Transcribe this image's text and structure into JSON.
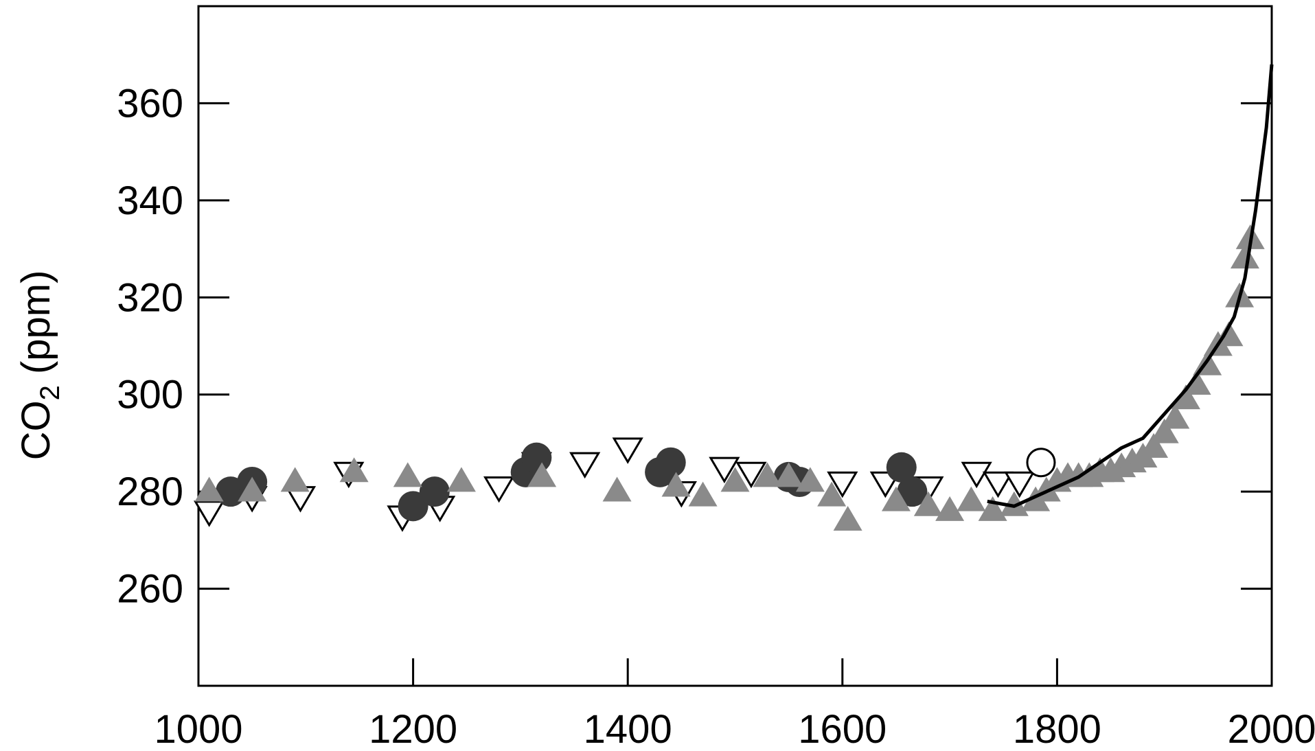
{
  "chart_data": {
    "type": "scatter",
    "xlim": [
      1000,
      2000
    ],
    "ylim": [
      240,
      380
    ],
    "xticks": [
      "1000",
      "1200",
      "1400",
      "1600",
      "1800",
      "2000"
    ],
    "yticks": [
      "260",
      "280",
      "300",
      "320",
      "340",
      "360"
    ],
    "ylabel": {
      "main": "CO",
      "sub": "2",
      "unit": "(ppm)"
    },
    "xlabel": "",
    "grid": false,
    "legend": "none",
    "colors": {
      "dark_circle": "#3a3a3a",
      "gray_triangle": "#8a8a8a",
      "open_marker": "#ffffff",
      "line": "#000000"
    },
    "series": [
      {
        "marker": "filled-circle",
        "color": "#3a3a3a",
        "x": [
          1030,
          1050,
          1200,
          1220,
          1305,
          1315,
          1430,
          1440,
          1550,
          1560,
          1655,
          1665
        ],
        "y": [
          280,
          282,
          277,
          280,
          284,
          287,
          284,
          286,
          283,
          282,
          285,
          280
        ]
      },
      {
        "marker": "filled-triangle-up",
        "color": "#8a8a8a",
        "x": [
          1010,
          1050,
          1090,
          1145,
          1195,
          1245,
          1320,
          1390,
          1445,
          1470,
          1500,
          1530,
          1550,
          1570,
          1590,
          1605,
          1650,
          1680,
          1700,
          1720,
          1740,
          1760,
          1780,
          1790,
          1800,
          1810,
          1820,
          1830,
          1840,
          1850,
          1860,
          1870,
          1880,
          1890,
          1900,
          1910,
          1920,
          1930,
          1940,
          1950,
          1960,
          1970,
          1975,
          1980
        ],
        "y": [
          280,
          280,
          282,
          284,
          283,
          282,
          283,
          280,
          281,
          279,
          282,
          283,
          283,
          282,
          279,
          274,
          278,
          277,
          276,
          278,
          276,
          277,
          278,
          280,
          282,
          283,
          283,
          283,
          284,
          284,
          285,
          286,
          287,
          289,
          292,
          295,
          299,
          302,
          306,
          310,
          312,
          320,
          328,
          332
        ]
      },
      {
        "marker": "open-triangle-down",
        "color": "#ffffff",
        "x": [
          1010,
          1050,
          1095,
          1140,
          1190,
          1225,
          1280,
          1315,
          1360,
          1400,
          1450,
          1490,
          1515,
          1600,
          1640,
          1680,
          1725,
          1745,
          1765
        ],
        "y": [
          276,
          279,
          279,
          284,
          275,
          277,
          281,
          286,
          286,
          289,
          280,
          285,
          284,
          282,
          282,
          281,
          284,
          282,
          282
        ]
      },
      {
        "marker": "open-circle",
        "color": "#ffffff",
        "x": [
          1785
        ],
        "y": [
          286
        ]
      },
      {
        "marker": "line",
        "color": "#000000",
        "x": [
          1735,
          1760,
          1780,
          1800,
          1820,
          1840,
          1860,
          1880,
          1900,
          1920,
          1940,
          1955,
          1965,
          1975,
          1985,
          1995,
          2000
        ],
        "y": [
          278,
          277,
          279,
          281,
          283,
          286,
          289,
          291,
          296,
          301,
          307,
          312,
          316,
          324,
          338,
          355,
          368
        ]
      }
    ]
  }
}
